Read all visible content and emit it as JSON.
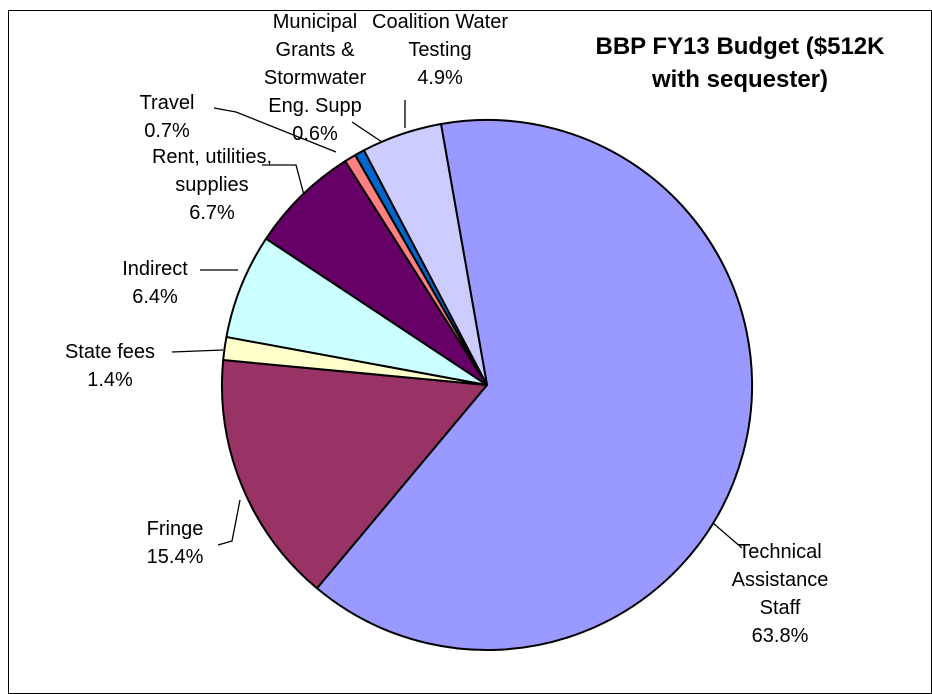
{
  "chart_data": {
    "type": "pie",
    "title": "BBP FY13 Budget ($512K with sequester)",
    "categories": [
      "Technical Assistance Staff",
      "Fringe",
      "State fees",
      "Indirect",
      "Rent, utilities, supplies",
      "Travel",
      "Municipal Grants & Stormwater Eng. Supp",
      "Coalition Water Testing"
    ],
    "values": [
      63.8,
      15.4,
      1.4,
      6.4,
      6.7,
      0.7,
      0.6,
      4.9
    ],
    "value_labels": [
      "63.8%",
      "15.4%",
      "1.4%",
      "6.4%",
      "6.7%",
      "0.7%",
      "0.6%",
      "4.9%"
    ],
    "colors": [
      "#9999ff",
      "#993366",
      "#ffffcc",
      "#ccffff",
      "#660066",
      "#ff8080",
      "#0066cc",
      "#ccccff"
    ]
  }
}
